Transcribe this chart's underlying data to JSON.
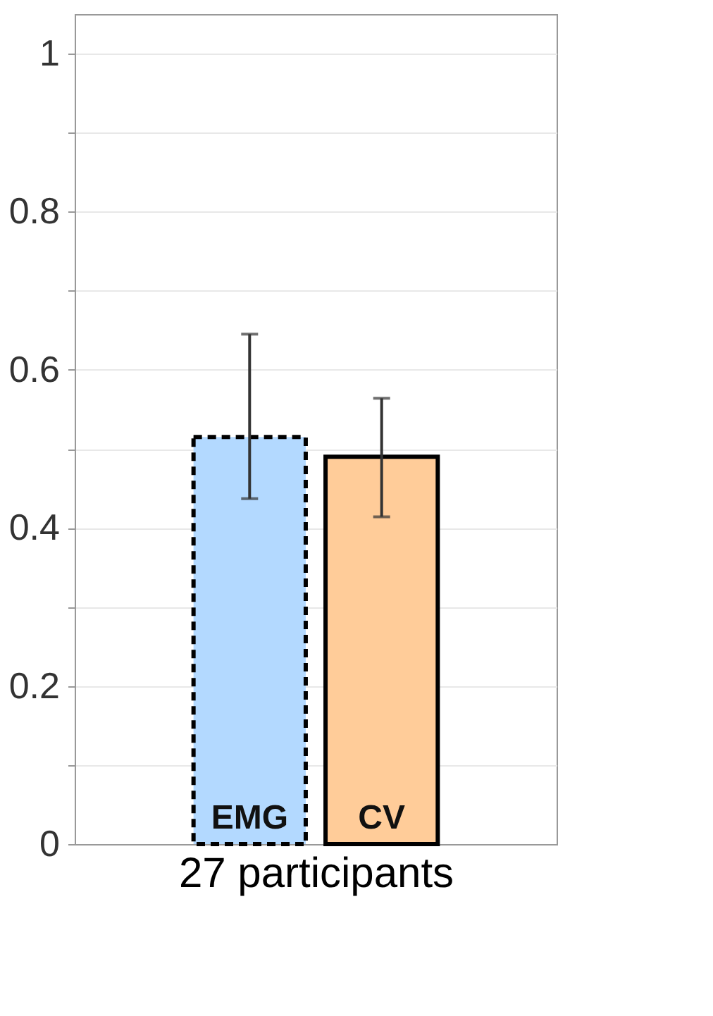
{
  "chart_data": {
    "type": "bar",
    "xlabel": "27 participants",
    "categories": [
      "EMG",
      "CV"
    ],
    "series": [
      {
        "color": "#b3d9ff",
        "line_style": "dashed",
        "values": [
          0.515,
          null
        ],
        "errors": [
          [
            0.437,
            0.645
          ],
          null
        ]
      },
      {
        "color": "#ffcc99",
        "line_style": "solid",
        "values": [
          null,
          0.49
        ],
        "errors": [
          null,
          [
            0.414,
            0.564
          ]
        ]
      }
    ],
    "ylim": [
      0,
      1.05
    ],
    "yticks": [
      0,
      {
        "value": 0.1,
        "label": null
      },
      0.2,
      {
        "value": 0.3,
        "label": null
      },
      0.4,
      {
        "value": 0.5,
        "label": null
      },
      0.6,
      {
        "value": 0.7,
        "label": null
      },
      0.8,
      {
        "value": 0.9,
        "label": null
      },
      1
    ],
    "grid": true
  }
}
